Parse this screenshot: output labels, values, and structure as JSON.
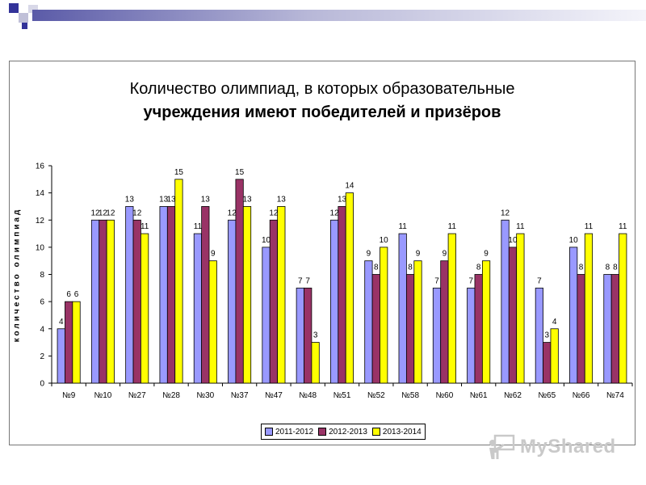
{
  "chart_data": {
    "type": "bar",
    "title_line1": "Количество олимпиад, в которых образовательные",
    "title_line2": "учреждения имеют победителей и призёров",
    "ylabel": "количество олимпиад",
    "xlabel": "",
    "ylim": [
      0,
      16
    ],
    "yticks": [
      0,
      2,
      4,
      6,
      8,
      10,
      12,
      14,
      16
    ],
    "grid": false,
    "legend_position": "bottom",
    "categories": [
      "№9",
      "№10",
      "№27",
      "№28",
      "№30",
      "№37",
      "№47",
      "№48",
      "№51",
      "№52",
      "№58",
      "№60",
      "№61",
      "№62",
      "№65",
      "№66",
      "№74"
    ],
    "series": [
      {
        "name": "2011-2012",
        "color": "#9999ff",
        "values": [
          4,
          12,
          13,
          13,
          11,
          12,
          10,
          7,
          12,
          9,
          11,
          7,
          7,
          12,
          7,
          10,
          8
        ]
      },
      {
        "name": "2012-2013",
        "color": "#993366",
        "values": [
          6,
          12,
          12,
          13,
          13,
          15,
          12,
          7,
          13,
          8,
          8,
          9,
          8,
          10,
          3,
          8,
          8
        ]
      },
      {
        "name": "2013-2014",
        "color": "#ffff00",
        "values": [
          6,
          12,
          11,
          15,
          9,
          13,
          13,
          3,
          14,
          10,
          9,
          11,
          9,
          11,
          4,
          11,
          11
        ]
      }
    ]
  },
  "watermark": {
    "text": "MyShared",
    "icon": "chalkboard-teacher-icon"
  },
  "colors": {
    "corner_blue": "#333399",
    "corner_gray": "#c0c0d8"
  }
}
